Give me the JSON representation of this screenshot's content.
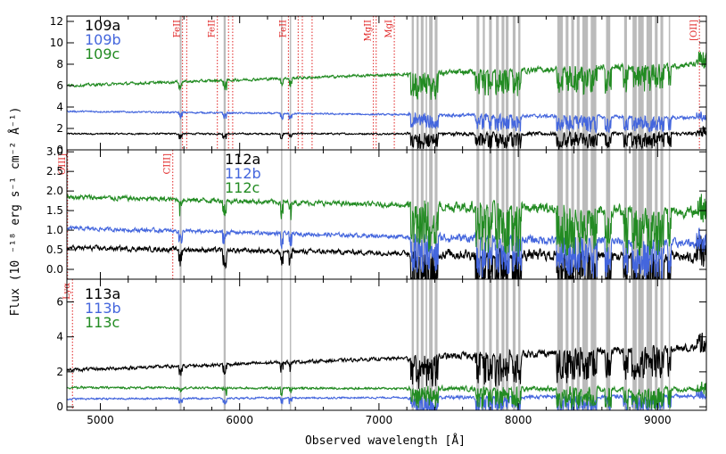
{
  "chart_data": {
    "type": "line",
    "xlabel": "Observed wavelength [Å]",
    "ylabel": "Flux (10 ⁻¹⁸ erg s⁻¹ cm⁻² Å⁻¹)",
    "xlim": [
      4760,
      9350
    ],
    "x_ticks": [
      5000,
      6000,
      7000,
      8000,
      9000
    ],
    "colors": {
      "a": "#000000",
      "b": "#4466dd",
      "c": "#228b22",
      "mask": "#bbbbbb",
      "line": "#e02020"
    },
    "mask_bands": [
      [
        5570,
        5583
      ],
      [
        5885,
        5900
      ],
      [
        6297,
        6305
      ],
      [
        6360,
        6368
      ],
      [
        7235,
        7250
      ],
      [
        7270,
        7285
      ],
      [
        7300,
        7320
      ],
      [
        7335,
        7345
      ],
      [
        7360,
        7385
      ],
      [
        7400,
        7420
      ],
      [
        7700,
        7720
      ],
      [
        7745,
        7760
      ],
      [
        7790,
        7810
      ],
      [
        7840,
        7860
      ],
      [
        7880,
        7900
      ],
      [
        7910,
        7930
      ],
      [
        7960,
        7980
      ],
      [
        8000,
        8015
      ],
      [
        8280,
        8320
      ],
      [
        8340,
        8360
      ],
      [
        8380,
        8400
      ],
      [
        8420,
        8440
      ],
      [
        8460,
        8500
      ],
      [
        8520,
        8560
      ],
      [
        8630,
        8660
      ],
      [
        8760,
        8780
      ],
      [
        8820,
        8850
      ],
      [
        8860,
        8900
      ],
      [
        8920,
        8960
      ],
      [
        8980,
        9000
      ],
      [
        9020,
        9040
      ],
      [
        9080,
        9090
      ]
    ],
    "panels": [
      {
        "id": "109",
        "ylim": [
          0,
          12.5
        ],
        "y_ticks": [
          0,
          2,
          4,
          6,
          8,
          10,
          12
        ],
        "legend": [
          "109a",
          "109b",
          "109c"
        ],
        "series": [
          {
            "name": "109a",
            "key": "a",
            "start": 1.5,
            "end": 1.5,
            "noise": 0.12
          },
          {
            "name": "109b",
            "key": "b",
            "start": 3.6,
            "end": 3.0,
            "noise": 0.12
          },
          {
            "name": "109c",
            "key": "c",
            "start": 6.0,
            "end": 8.0,
            "noise": 0.2
          }
        ],
        "lines": [
          {
            "label": "FeII",
            "x": [
              5590,
              5620
            ]
          },
          {
            "label": "FeII",
            "x": [
              5840,
              5920,
              5950
            ]
          },
          {
            "label": "FeII",
            "x": [
              6350,
              6420,
              6450,
              6520
            ]
          },
          {
            "label": "MgII",
            "x": [
              6960,
              6980
            ]
          },
          {
            "label": "MgI",
            "x": [
              7110
            ]
          },
          {
            "label": "[OII]",
            "x": [
              9300
            ]
          }
        ]
      },
      {
        "id": "112",
        "ylim": [
          -0.25,
          3.05
        ],
        "y_ticks": [
          0.0,
          0.5,
          1.0,
          1.5,
          2.0,
          2.5,
          3.0
        ],
        "legend": [
          "112a",
          "112b",
          "112c"
        ],
        "series": [
          {
            "name": "112a",
            "key": "a",
            "start": 0.55,
            "end": 0.3,
            "noise": 0.1
          },
          {
            "name": "112b",
            "key": "b",
            "start": 1.05,
            "end": 0.65,
            "noise": 0.08
          },
          {
            "name": "112c",
            "key": "c",
            "start": 1.85,
            "end": 1.45,
            "noise": 0.1
          }
        ],
        "lines": [
          {
            "label": "OIII]",
            "x": [
              4765
            ]
          },
          {
            "label": "CIII]",
            "x": [
              5520
            ]
          }
        ]
      },
      {
        "id": "113",
        "ylim": [
          -0.2,
          7.3
        ],
        "y_ticks": [
          0,
          2,
          4,
          6
        ],
        "legend": [
          "113a",
          "113b",
          "113c"
        ],
        "series": [
          {
            "name": "113a",
            "key": "a",
            "start": 2.1,
            "end": 3.4,
            "noise": 0.15
          },
          {
            "name": "113b",
            "key": "b",
            "start": 0.45,
            "end": 0.6,
            "noise": 0.08
          },
          {
            "name": "113c",
            "key": "c",
            "start": 1.1,
            "end": 1.0,
            "noise": 0.1
          }
        ],
        "lines": [
          {
            "label": "Lyα",
            "x": [
              4800
            ]
          }
        ]
      }
    ]
  }
}
